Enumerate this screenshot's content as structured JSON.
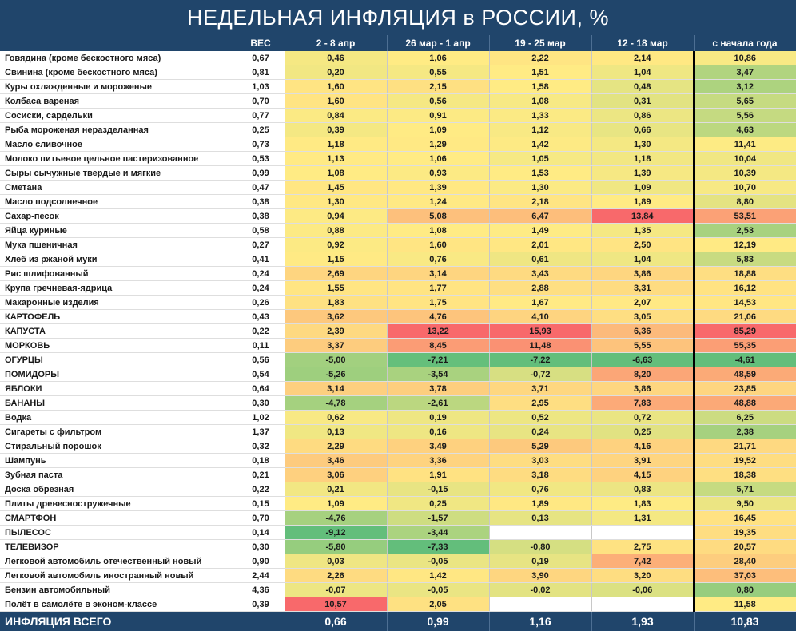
{
  "title": "НЕДЕЛЬНАЯ ИНФЛЯЦИЯ в РОССИИ, %",
  "headers": [
    "",
    "ВЕС",
    "2 - 8 апр",
    "26 мар - 1 апр",
    "19 - 25 мар",
    "12 - 18 мар",
    "с начала года"
  ],
  "chart_data": {
    "type": "table",
    "columns": [
      "ВЕС",
      "2 - 8 апр",
      "26 мар - 1 апр",
      "19 - 25 мар",
      "12 - 18 мар",
      "с начала года"
    ],
    "rows": [
      {
        "name": "Говядина (кроме бескостного мяса)",
        "weight": "0,67",
        "values": [
          "0,46",
          "1,06",
          "2,22",
          "2,14"
        ],
        "ytd": "10,86"
      },
      {
        "name": "Свинина (кроме бескостного мяса)",
        "weight": "0,81",
        "values": [
          "0,20",
          "0,55",
          "1,51",
          "1,04"
        ],
        "ytd": "3,47"
      },
      {
        "name": "Куры охлажденные и мороженые",
        "weight": "1,03",
        "values": [
          "1,60",
          "2,15",
          "1,58",
          "0,48"
        ],
        "ytd": "3,12"
      },
      {
        "name": "Колбаса вареная",
        "weight": "0,70",
        "values": [
          "1,60",
          "0,56",
          "1,08",
          "0,31"
        ],
        "ytd": "5,65"
      },
      {
        "name": "Сосиски, сардельки",
        "weight": "0,77",
        "values": [
          "0,84",
          "0,91",
          "1,33",
          "0,86"
        ],
        "ytd": "5,56"
      },
      {
        "name": "Рыба мороженая неразделанная",
        "weight": "0,25",
        "values": [
          "0,39",
          "1,09",
          "1,12",
          "0,66"
        ],
        "ytd": "4,63"
      },
      {
        "name": "Масло сливочное",
        "weight": "0,73",
        "values": [
          "1,18",
          "1,29",
          "1,42",
          "1,30"
        ],
        "ytd": "11,41",
        "group_start": true
      },
      {
        "name": "Молоко питьевое цельное пастеризованное",
        "weight": "0,53",
        "values": [
          "1,13",
          "1,06",
          "1,05",
          "1,18"
        ],
        "ytd": "10,04"
      },
      {
        "name": "Сыры сычужные твердые и мягкие",
        "weight": "0,99",
        "values": [
          "1,08",
          "0,93",
          "1,53",
          "1,39"
        ],
        "ytd": "10,39"
      },
      {
        "name": "Сметана",
        "weight": "0,47",
        "values": [
          "1,45",
          "1,39",
          "1,30",
          "1,09"
        ],
        "ytd": "10,70"
      },
      {
        "name": "Масло подсолнечное",
        "weight": "0,38",
        "values": [
          "1,30",
          "1,24",
          "2,18",
          "1,89"
        ],
        "ytd": "8,80",
        "group_start": true
      },
      {
        "name": "Сахар-песок",
        "weight": "0,38",
        "values": [
          "0,94",
          "5,08",
          "6,47",
          "13,84"
        ],
        "ytd": "53,51"
      },
      {
        "name": "Яйца куриные",
        "weight": "0,58",
        "values": [
          "0,88",
          "1,08",
          "1,49",
          "1,35"
        ],
        "ytd": "2,53",
        "group_start": true
      },
      {
        "name": "Мука пшеничная",
        "weight": "0,27",
        "values": [
          "0,92",
          "1,60",
          "2,01",
          "2,50"
        ],
        "ytd": "12,19"
      },
      {
        "name": "Хлеб из ржаной муки",
        "weight": "0,41",
        "values": [
          "1,15",
          "0,76",
          "0,61",
          "1,04"
        ],
        "ytd": "5,83"
      },
      {
        "name": "Рис шлифованный",
        "weight": "0,24",
        "values": [
          "2,69",
          "3,14",
          "3,43",
          "3,86"
        ],
        "ytd": "18,88"
      },
      {
        "name": "Крупа гречневая-ядрица",
        "weight": "0,24",
        "values": [
          "1,55",
          "1,77",
          "2,88",
          "3,31"
        ],
        "ytd": "16,12"
      },
      {
        "name": "Макаронные изделия",
        "weight": "0,26",
        "values": [
          "1,83",
          "1,75",
          "1,67",
          "2,07"
        ],
        "ytd": "14,53"
      },
      {
        "name": "КАРТОФЕЛЬ",
        "weight": "0,43",
        "values": [
          "3,62",
          "4,76",
          "4,10",
          "3,05"
        ],
        "ytd": "21,06",
        "group_start": true
      },
      {
        "name": "КАПУСТА",
        "weight": "0,22",
        "values": [
          "2,39",
          "13,22",
          "15,93",
          "6,36"
        ],
        "ytd": "85,29"
      },
      {
        "name": "МОРКОВЬ",
        "weight": "0,11",
        "values": [
          "3,37",
          "8,45",
          "11,48",
          "5,55"
        ],
        "ytd": "55,35"
      },
      {
        "name": "ОГУРЦЫ",
        "weight": "0,56",
        "values": [
          "-5,00",
          "-7,21",
          "-7,22",
          "-6,63"
        ],
        "ytd": "-4,61"
      },
      {
        "name": "ПОМИДОРЫ",
        "weight": "0,54",
        "values": [
          "-5,26",
          "-3,54",
          "-0,72",
          "8,20"
        ],
        "ytd": "48,59"
      },
      {
        "name": "ЯБЛОКИ",
        "weight": "0,64",
        "values": [
          "3,14",
          "3,78",
          "3,71",
          "3,86"
        ],
        "ytd": "23,85"
      },
      {
        "name": "БАНАНЫ",
        "weight": "0,30",
        "values": [
          "-4,78",
          "-2,61",
          "2,95",
          "7,83"
        ],
        "ytd": "48,88"
      },
      {
        "name": "Водка",
        "weight": "1,02",
        "values": [
          "0,62",
          "0,19",
          "0,52",
          "0,72"
        ],
        "ytd": "6,25",
        "group_start": true
      },
      {
        "name": "Сигареты с фильтром",
        "weight": "1,37",
        "values": [
          "0,13",
          "0,16",
          "0,24",
          "0,25"
        ],
        "ytd": "2,38"
      },
      {
        "name": "Стиральный порошок",
        "weight": "0,32",
        "values": [
          "2,29",
          "3,49",
          "5,29",
          "4,16"
        ],
        "ytd": "21,71",
        "group_start": true
      },
      {
        "name": "Шампунь",
        "weight": "0,18",
        "values": [
          "3,46",
          "3,36",
          "3,03",
          "3,91"
        ],
        "ytd": "19,52"
      },
      {
        "name": "Зубная паста",
        "weight": "0,21",
        "values": [
          "3,06",
          "1,91",
          "3,18",
          "4,15"
        ],
        "ytd": "18,38"
      },
      {
        "name": "Доска обрезная",
        "weight": "0,22",
        "values": [
          "0,21",
          "-0,15",
          "0,76",
          "0,83"
        ],
        "ytd": "5,71",
        "group_start": true
      },
      {
        "name": "Плиты древесностружечные",
        "weight": "0,15",
        "values": [
          "1,09",
          "0,25",
          "1,89",
          "1,83"
        ],
        "ytd": "9,50"
      },
      {
        "name": "СМАРТФОН",
        "weight": "0,70",
        "values": [
          "-4,76",
          "-1,57",
          "0,13",
          "1,31"
        ],
        "ytd": "16,45",
        "group_start": true
      },
      {
        "name": "ПЫЛЕСОС",
        "weight": "0,14",
        "values": [
          "-9,12",
          "-3,44",
          "",
          ""
        ],
        "ytd": "19,35"
      },
      {
        "name": "ТЕЛЕВИЗОР",
        "weight": "0,30",
        "values": [
          "-5,80",
          "-7,33",
          "-0,80",
          "2,75"
        ],
        "ytd": "20,57"
      },
      {
        "name": "Легковой автомобиль отечественный новый",
        "weight": "0,90",
        "values": [
          "0,03",
          "-0,05",
          "0,19",
          "7,42"
        ],
        "ytd": "28,40",
        "group_start": true
      },
      {
        "name": "Легковой автомобиль иностранный новый",
        "weight": "2,44",
        "values": [
          "2,26",
          "1,42",
          "3,90",
          "3,20"
        ],
        "ytd": "37,03"
      },
      {
        "name": "Бензин автомобильный",
        "weight": "4,36",
        "values": [
          "-0,07",
          "-0,05",
          "-0,02",
          "-0,06"
        ],
        "ytd": "0,80"
      },
      {
        "name": "Полёт в самолёте в эконом-классе",
        "weight": "0,39",
        "values": [
          "10,57",
          "2,05",
          "",
          ""
        ],
        "ytd": "11,58",
        "group_start": true
      }
    ],
    "total": {
      "name": "ИНФЛЯЦИЯ ВСЕГО",
      "weight": "",
      "values": [
        "0,66",
        "0,99",
        "1,16",
        "1,93"
      ],
      "ytd": "10,83"
    }
  }
}
